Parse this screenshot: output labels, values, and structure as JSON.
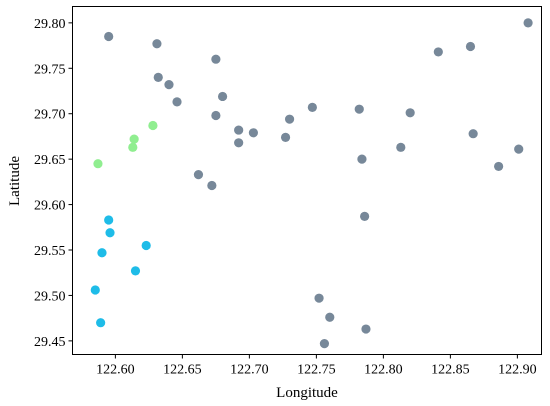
{
  "chart_data": {
    "type": "scatter",
    "title": "",
    "xlabel": "Longitude",
    "ylabel": "Latitude",
    "xlim": [
      122.568,
      122.918
    ],
    "ylim": [
      29.435,
      29.818
    ],
    "grid": false,
    "x_ticks": [
      "122.60",
      "122.65",
      "122.70",
      "122.75",
      "122.80",
      "122.85",
      "122.90"
    ],
    "y_ticks": [
      "29.45",
      "29.50",
      "29.55",
      "29.60",
      "29.65",
      "29.70",
      "29.75",
      "29.80"
    ],
    "series": [
      {
        "color": "#778899",
        "points": [
          {
            "x": 122.595,
            "y": 29.785
          },
          {
            "x": 122.631,
            "y": 29.777
          },
          {
            "x": 122.675,
            "y": 29.76
          },
          {
            "x": 122.632,
            "y": 29.74
          },
          {
            "x": 122.64,
            "y": 29.732
          },
          {
            "x": 122.68,
            "y": 29.719
          },
          {
            "x": 122.646,
            "y": 29.713
          },
          {
            "x": 122.675,
            "y": 29.698
          },
          {
            "x": 122.692,
            "y": 29.682
          },
          {
            "x": 122.703,
            "y": 29.679
          },
          {
            "x": 122.692,
            "y": 29.668
          },
          {
            "x": 122.727,
            "y": 29.674
          },
          {
            "x": 122.73,
            "y": 29.694
          },
          {
            "x": 122.747,
            "y": 29.707
          },
          {
            "x": 122.782,
            "y": 29.705
          },
          {
            "x": 122.82,
            "y": 29.701
          },
          {
            "x": 122.813,
            "y": 29.663
          },
          {
            "x": 122.784,
            "y": 29.65
          },
          {
            "x": 122.841,
            "y": 29.768
          },
          {
            "x": 122.865,
            "y": 29.774
          },
          {
            "x": 122.908,
            "y": 29.8
          },
          {
            "x": 122.867,
            "y": 29.678
          },
          {
            "x": 122.901,
            "y": 29.661
          },
          {
            "x": 122.886,
            "y": 29.642
          },
          {
            "x": 122.662,
            "y": 29.633
          },
          {
            "x": 122.672,
            "y": 29.621
          },
          {
            "x": 122.786,
            "y": 29.587
          },
          {
            "x": 122.752,
            "y": 29.497
          },
          {
            "x": 122.76,
            "y": 29.476
          },
          {
            "x": 122.787,
            "y": 29.463
          },
          {
            "x": 122.756,
            "y": 29.447
          }
        ]
      },
      {
        "color": "#90ee90",
        "points": [
          {
            "x": 122.628,
            "y": 29.687
          },
          {
            "x": 122.614,
            "y": 29.672
          },
          {
            "x": 122.613,
            "y": 29.663
          },
          {
            "x": 122.587,
            "y": 29.645
          }
        ]
      },
      {
        "color": "#1ebce8",
        "points": [
          {
            "x": 122.595,
            "y": 29.583
          },
          {
            "x": 122.596,
            "y": 29.569
          },
          {
            "x": 122.59,
            "y": 29.547
          },
          {
            "x": 122.623,
            "y": 29.555
          },
          {
            "x": 122.615,
            "y": 29.527
          },
          {
            "x": 122.585,
            "y": 29.506
          },
          {
            "x": 122.589,
            "y": 29.47
          }
        ]
      }
    ]
  }
}
